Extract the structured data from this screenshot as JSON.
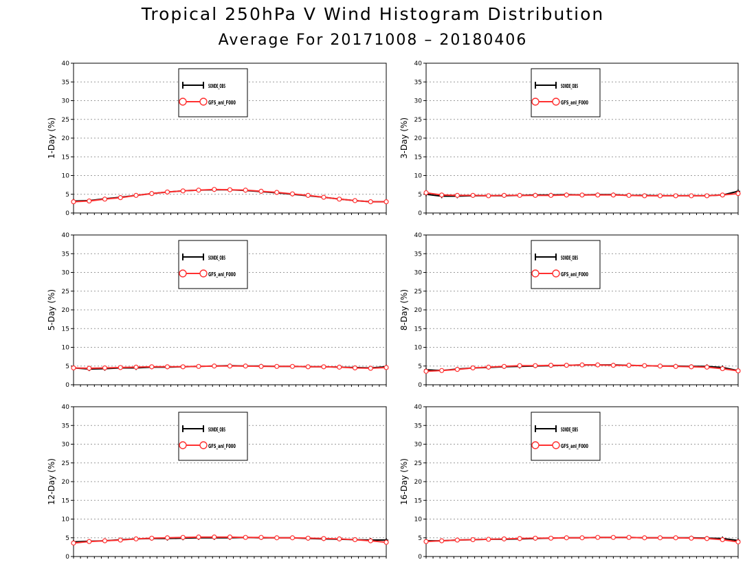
{
  "header": {
    "title": "Tropical 250hPa V Wind Histogram Distribution",
    "subtitle": "Average For 20171008 – 20180406"
  },
  "colors": {
    "series_a": "#000000",
    "series_b": "#ff3030",
    "grid": "#999999",
    "background": "#ffffff"
  },
  "chart_data": [
    {
      "type": "line",
      "ylabel": "1-Day (%)",
      "ylim": [
        0,
        40
      ],
      "yticks": [
        0,
        5,
        10,
        15,
        20,
        25,
        30,
        35,
        40
      ],
      "grid": true,
      "legend_placement": "top-center",
      "x": [
        1,
        2,
        3,
        4,
        5,
        6,
        7,
        8,
        9,
        10,
        11,
        12,
        13,
        14,
        15,
        16,
        17,
        18,
        19,
        20,
        21
      ],
      "series": [
        {
          "name": "SONDE_OBS",
          "marker": "plus",
          "values": [
            3.2,
            3.3,
            3.8,
            4.2,
            4.7,
            5.2,
            5.6,
            5.9,
            6.1,
            6.2,
            6.2,
            6.0,
            5.7,
            5.4,
            5.0,
            4.6,
            4.2,
            3.7,
            3.3,
            3.0,
            3.0
          ]
        },
        {
          "name": "GFS_anl_F000",
          "marker": "circle",
          "values": [
            3.0,
            3.2,
            3.7,
            4.1,
            4.7,
            5.2,
            5.6,
            5.9,
            6.1,
            6.3,
            6.2,
            6.1,
            5.8,
            5.5,
            5.1,
            4.7,
            4.2,
            3.7,
            3.3,
            3.0,
            3.0
          ]
        }
      ]
    },
    {
      "type": "line",
      "ylabel": "3-Day (%)",
      "ylim": [
        0,
        40
      ],
      "yticks": [
        0,
        5,
        10,
        15,
        20,
        25,
        30,
        35,
        40
      ],
      "grid": true,
      "legend_placement": "top-center",
      "x": [
        1,
        2,
        3,
        4,
        5,
        6,
        7,
        8,
        9,
        10,
        11,
        12,
        13,
        14,
        15,
        16,
        17,
        18,
        19,
        20,
        21
      ],
      "series": [
        {
          "name": "SONDE_OBS",
          "marker": "plus",
          "values": [
            5.0,
            4.5,
            4.5,
            4.6,
            4.6,
            4.6,
            4.7,
            4.8,
            4.8,
            4.9,
            4.8,
            4.9,
            4.9,
            4.7,
            4.7,
            4.6,
            4.6,
            4.6,
            4.6,
            4.8,
            5.8
          ]
        },
        {
          "name": "GFS_anl_F000",
          "marker": "circle",
          "values": [
            5.4,
            4.8,
            4.7,
            4.7,
            4.6,
            4.7,
            4.7,
            4.7,
            4.7,
            4.8,
            4.8,
            4.8,
            4.8,
            4.7,
            4.6,
            4.6,
            4.6,
            4.6,
            4.6,
            4.8,
            5.2
          ]
        }
      ]
    },
    {
      "type": "line",
      "ylabel": "5-Day (%)",
      "ylim": [
        0,
        40
      ],
      "yticks": [
        0,
        5,
        10,
        15,
        20,
        25,
        30,
        35,
        40
      ],
      "grid": true,
      "legend_placement": "top-center",
      "x": [
        1,
        2,
        3,
        4,
        5,
        6,
        7,
        8,
        9,
        10,
        11,
        12,
        13,
        14,
        15,
        16,
        17,
        18,
        19,
        20,
        21
      ],
      "series": [
        {
          "name": "SONDE_OBS",
          "marker": "plus",
          "values": [
            4.5,
            4.2,
            4.3,
            4.5,
            4.5,
            4.7,
            4.7,
            4.8,
            4.9,
            5.0,
            5.1,
            5.0,
            5.0,
            4.9,
            4.9,
            4.8,
            4.8,
            4.7,
            4.6,
            4.5,
            4.8
          ]
        },
        {
          "name": "GFS_anl_F000",
          "marker": "circle",
          "values": [
            4.5,
            4.4,
            4.5,
            4.6,
            4.7,
            4.8,
            4.8,
            4.8,
            4.9,
            5.0,
            5.0,
            5.0,
            4.9,
            4.9,
            4.9,
            4.8,
            4.8,
            4.7,
            4.5,
            4.4,
            4.6
          ]
        }
      ]
    },
    {
      "type": "line",
      "ylabel": "8-Day (%)",
      "ylim": [
        0,
        40
      ],
      "yticks": [
        0,
        5,
        10,
        15,
        20,
        25,
        30,
        35,
        40
      ],
      "grid": true,
      "legend_placement": "top-center",
      "x": [
        1,
        2,
        3,
        4,
        5,
        6,
        7,
        8,
        9,
        10,
        11,
        12,
        13,
        14,
        15,
        16,
        17,
        18,
        19,
        20,
        21
      ],
      "series": [
        {
          "name": "SONDE_OBS",
          "marker": "plus",
          "values": [
            4.0,
            3.8,
            4.2,
            4.5,
            4.6,
            4.8,
            4.9,
            5.0,
            5.1,
            5.2,
            5.3,
            5.3,
            5.3,
            5.2,
            5.1,
            5.0,
            5.0,
            4.9,
            4.9,
            4.6,
            3.8
          ]
        },
        {
          "name": "GFS_anl_F000",
          "marker": "circle",
          "values": [
            3.6,
            3.8,
            4.1,
            4.5,
            4.7,
            4.9,
            5.1,
            5.1,
            5.2,
            5.2,
            5.3,
            5.3,
            5.2,
            5.2,
            5.1,
            5.0,
            4.9,
            4.8,
            4.7,
            4.3,
            3.7
          ]
        }
      ]
    },
    {
      "type": "line",
      "ylabel": "12-Day (%)",
      "ylim": [
        0,
        40
      ],
      "yticks": [
        0,
        5,
        10,
        15,
        20,
        25,
        30,
        35,
        40
      ],
      "grid": true,
      "legend_placement": "top-center",
      "x": [
        1,
        2,
        3,
        4,
        5,
        6,
        7,
        8,
        9,
        10,
        11,
        12,
        13,
        14,
        15,
        16,
        17,
        18,
        19,
        20,
        21
      ],
      "series": [
        {
          "name": "SONDE_OBS",
          "marker": "plus",
          "values": [
            3.9,
            4.1,
            4.2,
            4.5,
            4.7,
            4.8,
            4.8,
            4.9,
            5.0,
            5.0,
            5.0,
            5.1,
            5.0,
            5.0,
            5.0,
            4.8,
            4.7,
            4.6,
            4.5,
            4.4,
            4.4
          ]
        },
        {
          "name": "GFS_anl_F000",
          "marker": "circle",
          "values": [
            3.6,
            4.0,
            4.2,
            4.4,
            4.7,
            4.9,
            5.0,
            5.1,
            5.2,
            5.2,
            5.2,
            5.1,
            5.1,
            5.0,
            5.0,
            4.9,
            4.8,
            4.7,
            4.5,
            4.2,
            3.8
          ]
        }
      ]
    },
    {
      "type": "line",
      "ylabel": "16-Day (%)",
      "ylim": [
        0,
        40
      ],
      "yticks": [
        0,
        5,
        10,
        15,
        20,
        25,
        30,
        35,
        40
      ],
      "grid": true,
      "legend_placement": "top-center",
      "x": [
        1,
        2,
        3,
        4,
        5,
        6,
        7,
        8,
        9,
        10,
        11,
        12,
        13,
        14,
        15,
        16,
        17,
        18,
        19,
        20,
        21
      ],
      "series": [
        {
          "name": "SONDE_OBS",
          "marker": "plus",
          "values": [
            4.2,
            4.2,
            4.4,
            4.5,
            4.6,
            4.6,
            4.7,
            4.8,
            4.9,
            5.0,
            5.0,
            5.1,
            5.1,
            5.1,
            5.0,
            5.0,
            5.0,
            5.0,
            4.9,
            4.8,
            4.3
          ]
        },
        {
          "name": "GFS_anl_F000",
          "marker": "circle",
          "values": [
            4.0,
            4.2,
            4.4,
            4.5,
            4.6,
            4.7,
            4.8,
            4.9,
            4.9,
            5.0,
            5.0,
            5.1,
            5.1,
            5.1,
            5.0,
            5.0,
            5.0,
            4.9,
            4.8,
            4.5,
            3.9
          ]
        }
      ]
    }
  ]
}
